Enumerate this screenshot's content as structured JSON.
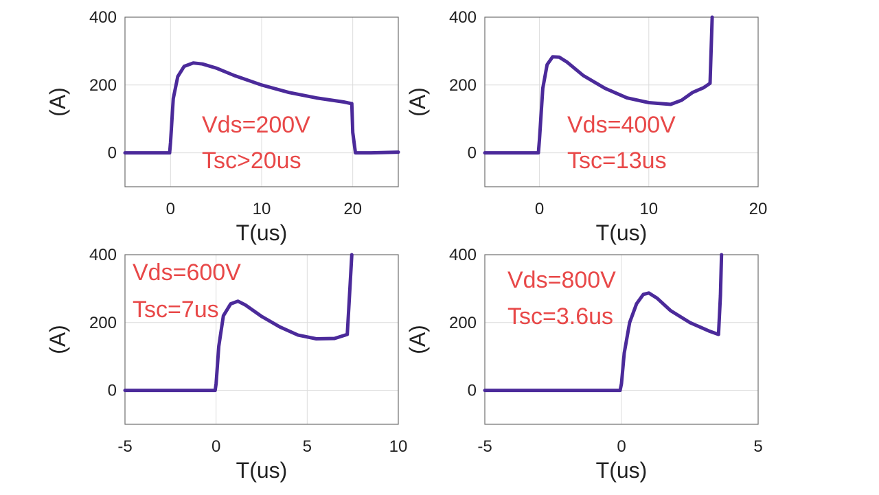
{
  "colors": {
    "trace": "#4b2a9a",
    "annotation": "#e84848"
  },
  "chart_data": [
    {
      "type": "line",
      "xlabel": "T(us)",
      "ylabel": "(A)",
      "xlim": [
        -5,
        25
      ],
      "ylim": [
        -100,
        400
      ],
      "xticks": [
        0,
        10,
        20
      ],
      "yticks": [
        0,
        200,
        400
      ],
      "annotations": [
        "Vds=200V",
        "Tsc>20us"
      ],
      "series": [
        {
          "name": "Vds=200V",
          "x": [
            -5,
            -0.1,
            0,
            0.3,
            0.8,
            1.5,
            2.5,
            3.5,
            5,
            7,
            10,
            13,
            16,
            19,
            19.9,
            20,
            20.3,
            22,
            25
          ],
          "y": [
            0,
            0,
            30,
            160,
            225,
            255,
            265,
            262,
            250,
            228,
            200,
            178,
            162,
            150,
            145,
            60,
            0,
            0,
            2
          ]
        }
      ]
    },
    {
      "type": "line",
      "xlabel": "T(us)",
      "ylabel": "(A)",
      "xlim": [
        -5,
        20
      ],
      "ylim": [
        -100,
        400
      ],
      "xticks": [
        0,
        10,
        20
      ],
      "yticks": [
        0,
        200,
        400
      ],
      "annotations": [
        "Vds=400V",
        "Tsc=13us"
      ],
      "series": [
        {
          "name": "Vds=400V",
          "x": [
            -5,
            -0.1,
            0,
            0.3,
            0.7,
            1.2,
            1.8,
            2.5,
            4,
            6,
            8,
            10,
            12,
            13,
            14,
            15,
            15.6,
            15.7,
            15.8
          ],
          "y": [
            0,
            0,
            40,
            190,
            260,
            283,
            282,
            268,
            228,
            190,
            162,
            148,
            143,
            155,
            178,
            192,
            205,
            300,
            400
          ]
        }
      ]
    },
    {
      "type": "line",
      "xlabel": "T(us)",
      "ylabel": "(A)",
      "xlim": [
        -5,
        10
      ],
      "ylim": [
        -100,
        400
      ],
      "xticks": [
        -5,
        0,
        5,
        10
      ],
      "yticks": [
        0,
        200,
        400
      ],
      "annotations": [
        "Vds=600V",
        "Tsc=7us"
      ],
      "series": [
        {
          "name": "Vds=600V",
          "x": [
            -5,
            -0.05,
            0,
            0.15,
            0.4,
            0.8,
            1.2,
            1.6,
            2.5,
            3.5,
            4.5,
            5.5,
            6.5,
            7.2,
            7.3,
            7.45
          ],
          "y": [
            0,
            0,
            20,
            130,
            220,
            255,
            263,
            252,
            218,
            187,
            163,
            152,
            153,
            165,
            260,
            400
          ]
        }
      ]
    },
    {
      "type": "line",
      "xlabel": "T(us)",
      "ylabel": "(A)",
      "xlim": [
        -5,
        5
      ],
      "ylim": [
        -100,
        400
      ],
      "xticks": [
        -5,
        0,
        5
      ],
      "yticks": [
        0,
        200,
        400
      ],
      "annotations": [
        "Vds=800V",
        "Tsc=3.6us"
      ],
      "series": [
        {
          "name": "Vds=800V",
          "x": [
            -5,
            -0.05,
            0,
            0.1,
            0.3,
            0.55,
            0.8,
            1.0,
            1.3,
            1.8,
            2.5,
            3.2,
            3.55,
            3.62,
            3.66
          ],
          "y": [
            0,
            0,
            20,
            110,
            200,
            255,
            283,
            287,
            272,
            235,
            200,
            175,
            165,
            280,
            400
          ]
        }
      ]
    }
  ]
}
